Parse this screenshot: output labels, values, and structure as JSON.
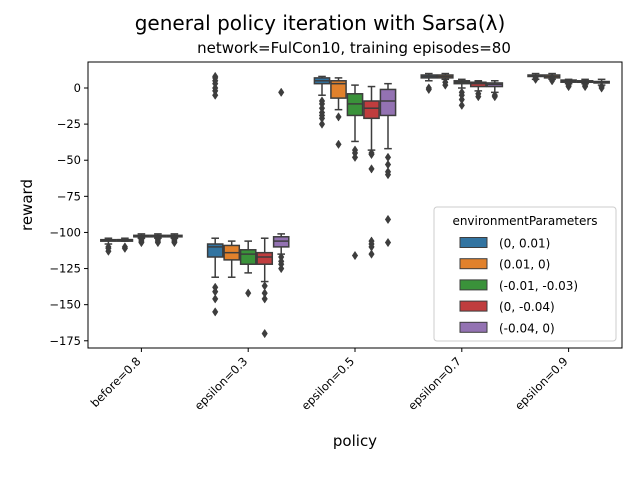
{
  "chart_data": {
    "type": "boxplot",
    "title": "general policy iteration with Sarsa(λ)",
    "subtitle": "network=FulCon10, training episodes=80",
    "xlabel": "policy",
    "ylabel": "reward",
    "ylim": [
      -180,
      18
    ],
    "yticks": [
      0,
      -25,
      -50,
      -75,
      -100,
      -125,
      -150,
      -175
    ],
    "categories": [
      "before=0.8",
      "epsilon=0.3",
      "epsilon=0.5",
      "epsilon=0.7",
      "epsilon=0.9"
    ],
    "legend": {
      "title": "environmentParameters",
      "position": "right",
      "entries": [
        "(0, 0.01)",
        "(0.01, 0)",
        "(-0.01, -0.03)",
        "(0, -0.04)",
        "(-0.04, 0)"
      ]
    },
    "colors": [
      "#3274a1",
      "#e1812c",
      "#3a923a",
      "#c03d3e",
      "#9372b2"
    ],
    "series": [
      {
        "name": "(0, 0.01)",
        "boxes": [
          {
            "wlo": -108,
            "q1": -106,
            "med": -105.5,
            "q3": -105,
            "whi": -104,
            "fliers": [
              -110,
              -111,
              -113
            ]
          },
          {
            "wlo": -131,
            "q1": -117,
            "med": -110,
            "q3": -108,
            "whi": -104,
            "fliers": [
              -138,
              -141,
              -146,
              -155,
              7,
              5,
              3,
              0,
              -2,
              -5,
              8
            ]
          },
          {
            "wlo": -5,
            "q1": 3,
            "med": 5,
            "q3": 7,
            "whi": 8,
            "fliers": [
              -9,
              -11,
              -14,
              -17,
              -19,
              -21,
              -25
            ]
          },
          {
            "wlo": 5,
            "q1": 7,
            "med": 8,
            "q3": 9,
            "whi": 10,
            "fliers": [
              0,
              -1
            ]
          },
          {
            "wlo": 6,
            "q1": 8,
            "med": 8.5,
            "q3": 9,
            "whi": 10,
            "fliers": [
              7,
              6
            ]
          }
        ]
      },
      {
        "name": "(0.01, 0)",
        "boxes": [
          {
            "wlo": -106,
            "q1": -105.5,
            "med": -105,
            "q3": -105,
            "whi": -104,
            "fliers": [
              -110,
              -111
            ]
          },
          {
            "wlo": -131,
            "q1": -119,
            "med": -114,
            "q3": -109,
            "whi": -106,
            "fliers": []
          },
          {
            "wlo": -15,
            "q1": -7,
            "med": 3,
            "q3": 5,
            "whi": 7,
            "fliers": [
              -20,
              -39
            ]
          },
          {
            "wlo": 6,
            "q1": 7,
            "med": 8,
            "q3": 9,
            "whi": 10,
            "fliers": [
              2,
              4
            ]
          },
          {
            "wlo": 6,
            "q1": 7,
            "med": 8,
            "q3": 9,
            "whi": 10,
            "fliers": [
              5,
              7
            ]
          }
        ]
      },
      {
        "name": "(-0.01, -0.03)",
        "boxes": [
          {
            "wlo": -104,
            "q1": -103,
            "med": -102.5,
            "q3": -102,
            "whi": -101,
            "fliers": [
              -105,
              -106,
              -107
            ]
          },
          {
            "wlo": -128,
            "q1": -122,
            "med": -115,
            "q3": -112,
            "whi": -106,
            "fliers": [
              -142
            ]
          },
          {
            "wlo": -37,
            "q1": -19,
            "med": -11,
            "q3": -4,
            "whi": 2,
            "fliers": [
              -43,
              -45,
              -48,
              -116
            ]
          },
          {
            "wlo": 0,
            "q1": 3,
            "med": 4,
            "q3": 5,
            "whi": 6,
            "fliers": [
              -3,
              -5,
              -8,
              -12
            ]
          },
          {
            "wlo": 3,
            "q1": 4,
            "med": 5,
            "q3": 5.5,
            "whi": 6,
            "fliers": [
              1,
              2,
              3
            ]
          }
        ]
      },
      {
        "name": "(0, -0.04)",
        "boxes": [
          {
            "wlo": -104,
            "q1": -103,
            "med": -102.5,
            "q3": -102,
            "whi": -101,
            "fliers": [
              -105,
              -106,
              -107
            ]
          },
          {
            "wlo": -134,
            "q1": -122,
            "med": -117,
            "q3": -114,
            "whi": -104,
            "fliers": [
              -137,
              -142,
              -146,
              -170
            ]
          },
          {
            "wlo": -43,
            "q1": -21,
            "med": -14,
            "q3": -9,
            "whi": 1,
            "fliers": [
              -45,
              -46,
              -56,
              -106,
              -108,
              -110,
              -115
            ]
          },
          {
            "wlo": -2,
            "q1": 1,
            "med": 3,
            "q3": 4,
            "whi": 5,
            "fliers": [
              -4,
              -6
            ]
          },
          {
            "wlo": 3,
            "q1": 4,
            "med": 4.5,
            "q3": 5,
            "whi": 6,
            "fliers": [
              2,
              1
            ]
          }
        ]
      },
      {
        "name": "(-0.04, 0)",
        "boxes": [
          {
            "wlo": -104,
            "q1": -103,
            "med": -102.5,
            "q3": -102,
            "whi": -101,
            "fliers": [
              -105,
              -106,
              -107
            ]
          },
          {
            "wlo": -115,
            "q1": -110,
            "med": -106,
            "q3": -103,
            "whi": -101,
            "fliers": [
              -117,
              -120,
              -122,
              -125,
              -3
            ]
          },
          {
            "wlo": -42,
            "q1": -19,
            "med": -9,
            "q3": -1,
            "whi": 3,
            "fliers": [
              -48,
              -53,
              -58,
              -60,
              -91,
              -107
            ]
          },
          {
            "wlo": -3,
            "q1": 1,
            "med": 2.5,
            "q3": 3.5,
            "whi": 5,
            "fliers": [
              -5,
              -6
            ]
          },
          {
            "wlo": 2,
            "q1": 3.5,
            "med": 4,
            "q3": 4.5,
            "whi": 6,
            "fliers": [
              1,
              0
            ]
          }
        ]
      }
    ]
  }
}
